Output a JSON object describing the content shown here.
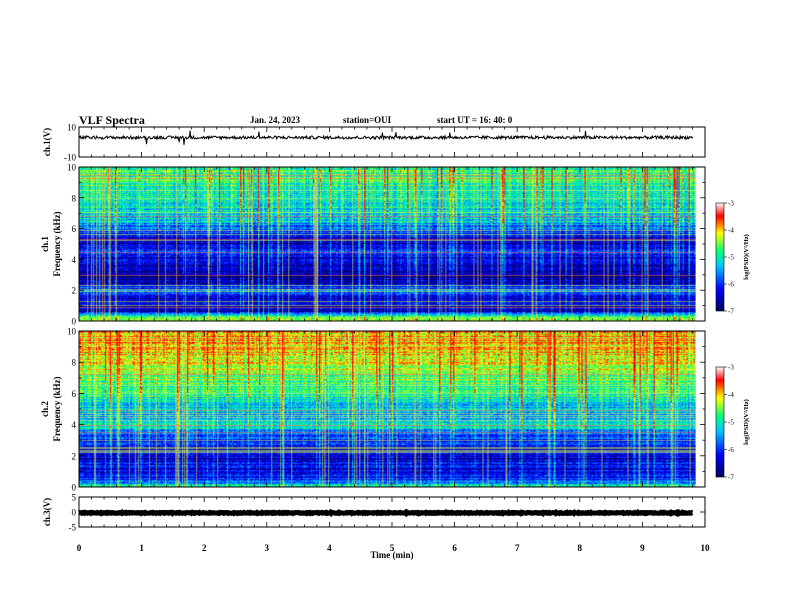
{
  "header": {
    "title": "VLF Spectra",
    "date": "Jan. 24, 2023",
    "station": "station=OUI",
    "start": "start UT =  16: 40: 0"
  },
  "chart_data": [
    {
      "type": "line",
      "panel": "ch1-waveform",
      "ylabel": "ch.1(V)",
      "ylim": [
        -10,
        10
      ],
      "yticks": [
        "10",
        "-10"
      ],
      "series_mean": 3,
      "series_amplitude": 1,
      "x_range_min": [
        0,
        9.8
      ]
    },
    {
      "type": "heatmap",
      "panel": "ch1-spectrogram",
      "ylabel_top": "ch.1",
      "ylabel": "Frequency (kHz)",
      "ylim": [
        0,
        10
      ],
      "yticks": [
        "0",
        "2",
        "4",
        "6",
        "8",
        "10"
      ],
      "x_range_min": [
        0,
        9.8
      ],
      "colorbar": {
        "label": "log(PSD)(V²/Hz)",
        "range": [
          -7,
          -3
        ],
        "ticks": [
          "-3",
          "-4",
          "-5",
          "-6",
          "-7"
        ]
      },
      "profile": [
        {
          "f": 0.0,
          "v": -4.6
        },
        {
          "f": 0.3,
          "v": -5.0
        },
        {
          "f": 0.6,
          "v": -6.5
        },
        {
          "f": 1.0,
          "v": -6.6
        },
        {
          "f": 1.5,
          "v": -6.2
        },
        {
          "f": 2.0,
          "v": -5.8
        },
        {
          "f": 2.5,
          "v": -6.7
        },
        {
          "f": 3.0,
          "v": -6.8
        },
        {
          "f": 3.5,
          "v": -6.6
        },
        {
          "f": 4.0,
          "v": -6.3
        },
        {
          "f": 4.5,
          "v": -6.1
        },
        {
          "f": 5.0,
          "v": -6.5
        },
        {
          "f": 5.5,
          "v": -6.4
        },
        {
          "f": 6.0,
          "v": -5.7
        },
        {
          "f": 6.5,
          "v": -5.3
        },
        {
          "f": 7.0,
          "v": -5.2
        },
        {
          "f": 8.0,
          "v": -5.0
        },
        {
          "f": 9.0,
          "v": -4.9
        },
        {
          "f": 10.0,
          "v": -4.8
        }
      ]
    },
    {
      "type": "heatmap",
      "panel": "ch2-spectrogram",
      "ylabel_top": "ch.2",
      "ylabel": "Frequency (kHz)",
      "ylim": [
        0,
        10
      ],
      "yticks": [
        "0",
        "2",
        "4",
        "6",
        "8",
        "10"
      ],
      "x_range_min": [
        0,
        9.8
      ],
      "colorbar": {
        "label": "log(PSD)(V²/Hz)",
        "range": [
          -7,
          -3
        ],
        "ticks": [
          "-3",
          "-4",
          "-5",
          "-6",
          "-7"
        ]
      },
      "profile": [
        {
          "f": 0.0,
          "v": -5.0
        },
        {
          "f": 0.5,
          "v": -6.0
        },
        {
          "f": 1.0,
          "v": -6.4
        },
        {
          "f": 1.5,
          "v": -6.3
        },
        {
          "f": 2.0,
          "v": -6.5
        },
        {
          "f": 2.5,
          "v": -6.3
        },
        {
          "f": 3.0,
          "v": -5.9
        },
        {
          "f": 3.5,
          "v": -5.6
        },
        {
          "f": 4.0,
          "v": -5.0
        },
        {
          "f": 4.5,
          "v": -5.5
        },
        {
          "f": 5.0,
          "v": -5.3
        },
        {
          "f": 6.0,
          "v": -4.9
        },
        {
          "f": 7.0,
          "v": -4.6
        },
        {
          "f": 8.0,
          "v": -4.2
        },
        {
          "f": 9.0,
          "v": -4.0
        },
        {
          "f": 10.0,
          "v": -4.0
        }
      ]
    },
    {
      "type": "line",
      "panel": "ch3-waveform",
      "ylabel": "ch.3(V)",
      "ylim": [
        -5,
        5
      ],
      "yticks": [
        "5",
        "0",
        "-5"
      ],
      "series_mean": -0.3,
      "series_amplitude": 0.15,
      "x_range_min": [
        0,
        9.8
      ]
    }
  ],
  "x_axis": {
    "label": "Time (min)",
    "range": [
      0,
      10
    ],
    "ticks": [
      "0",
      "1",
      "2",
      "3",
      "4",
      "5",
      "6",
      "7",
      "8",
      "9",
      "10"
    ]
  },
  "colors": {
    "scale": [
      "#000060",
      "#0000ff",
      "#00c8ff",
      "#00ff78",
      "#ffff00",
      "#ff0000"
    ]
  }
}
